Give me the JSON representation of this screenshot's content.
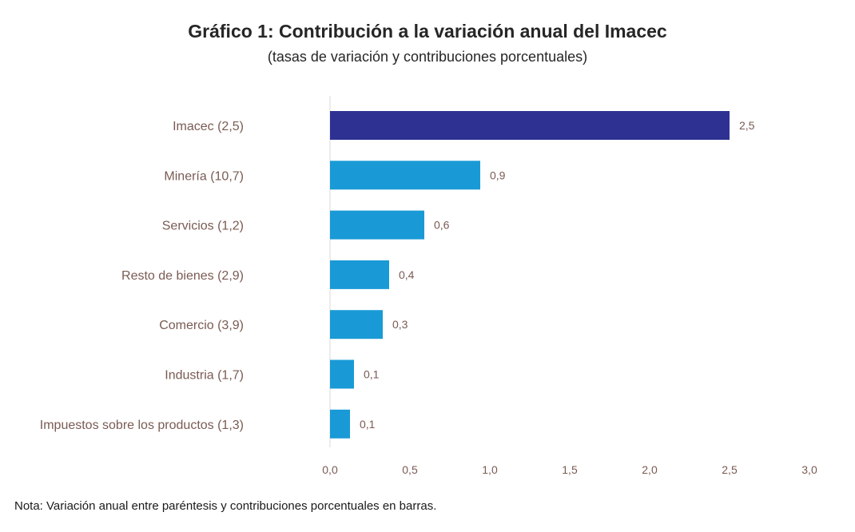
{
  "chart_data": {
    "type": "bar",
    "orientation": "horizontal",
    "title": "Gráfico 1: Contribución a la variación anual del Imacec",
    "subtitle": "(tasas de variación y contribuciones porcentuales)",
    "categories": [
      "Imacec (2,5)",
      "Minería (10,7)",
      "Servicios (1,2)",
      "Resto de bienes (2,9)",
      "Comercio (3,9)",
      "Industria (1,7)",
      "Impuestos sobre los productos (1,3)"
    ],
    "values": [
      2.5,
      0.94,
      0.59,
      0.37,
      0.33,
      0.15,
      0.125
    ],
    "value_labels": [
      "2,5",
      "0,9",
      "0,6",
      "0,4",
      "0,3",
      "0,1",
      "0,1"
    ],
    "bar_colors": [
      "#2e3192",
      "#199ad6",
      "#199ad6",
      "#199ad6",
      "#199ad6",
      "#199ad6",
      "#199ad6"
    ],
    "xlim": [
      0,
      3
    ],
    "xticks": [
      0,
      0.5,
      1,
      1.5,
      2,
      2.5,
      3
    ],
    "xtick_labels": [
      "0,0",
      "0,5",
      "1,0",
      "1,5",
      "2,0",
      "2,5",
      "3,0"
    ],
    "xlabel": "",
    "ylabel": "",
    "grid": false,
    "legend": "none"
  },
  "note": "Nota: Variación anual entre paréntesis y contribuciones porcentuales en barras.",
  "colors": {
    "axis": "#d9d9d9",
    "label": "#7a5b53"
  }
}
